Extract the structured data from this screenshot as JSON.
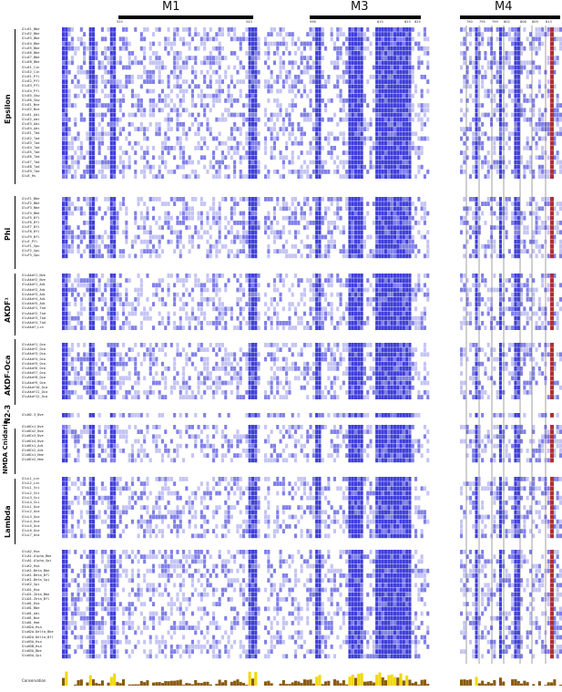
{
  "regions": {
    "m1": "M1",
    "m3": "M3",
    "m4": "M4"
  },
  "positions": {
    "m1": [
      "525",
      "543"
    ],
    "m3": [
      "596",
      "615",
      "623",
      "625"
    ],
    "m4": [
      "790",
      "795",
      "799",
      "802",
      "808",
      "809",
      "813"
    ]
  },
  "groups": [
    {
      "label": "Epsilon"
    },
    {
      "label": "Phi"
    },
    {
      "label": "AKDF¹"
    },
    {
      "label": "AKDF-Oca"
    },
    {
      "label": "N2-3"
    },
    {
      "label": "NMDA Cnidaria"
    },
    {
      "label": "Lambda"
    }
  ],
  "sequences": {
    "epsilon": [
      "GluE1_Bbe",
      "GluE2_Bbe",
      "GluE3_Bbe",
      "GluE4_Bbe",
      "GluE5_Bbe",
      "GluE6_Bbe",
      "GluE7_Bbe",
      "GluE8_Bbe",
      "GluE1_Cin",
      "GluE2_Cin",
      "GluE1_Pfl",
      "GluE2_Pfl",
      "GluE3_Pfl",
      "GluE4_Pfl",
      "GluE5_Skw",
      "GluE6_Skw",
      "GluE1_Nve",
      "GluE2_Nve",
      "GluE1_Adi",
      "GluE2_Adi",
      "GluE3_Adi",
      "GluE4_Adi",
      "GluE1_Tad",
      "GluE2_Tad",
      "GluE3_Tad",
      "GluE4_Tad",
      "GluE5_Tad",
      "GluE6_Tad",
      "GluE7_Tad",
      "GluE8_Tad",
      "GluE9_Tad",
      "GluE_Hs"
    ],
    "phi": [
      "GluF1_Bbe",
      "GluF2_Bbe",
      "GluF3_Bbe",
      "GluF4_Bbe",
      "GluF5_Bfl",
      "GluF6_Bfl",
      "GluF7_Bfl",
      "GluF8_Bfl",
      "GluF9_Bfl",
      "GluF_Pfl",
      "GluF1_Spu",
      "GluF2_Spu",
      "GluF3_Spu"
    ],
    "akdf": [
      "GluAkdf1_Nve",
      "GluAkdf2_Nve",
      "GluAkdf1_Adi",
      "GluAkdf2_Adi",
      "GluAkdf3_Adi",
      "GluAkdf4_Adi",
      "GluAkdf5_Adi",
      "GluAkdf1_Tad",
      "GluAkdf2_Tad",
      "GluAkdf3_Tad",
      "GluAkdf4_Tad",
      "GluAkdf_Lcn"
    ],
    "akdfoca": [
      "GluAkdf1_Oca",
      "GluAkdf2_Oca",
      "GluAkdf3_Oca",
      "GluAkdf4_Oca",
      "GluAkdf5_Oca",
      "GluAkdf6_Oca",
      "GluAkdf7_Oca",
      "GluAkdf8_Oca",
      "GluAkdf9_Oca",
      "GluAkdf10_Oca",
      "GluAkdf11_Oca",
      "GluAkdf12_Oca"
    ],
    "n23": [
      "GluN2-3_Nve"
    ],
    "nmda": [
      "GluNCn1_Nve",
      "GluNCn2_Nve",
      "GluNCn3_Nve",
      "GluNCn4_Nve",
      "GluNCn1_Adi",
      "GluNCn2_Adi",
      "GluNCn1_Hme",
      "GluNCn2_Hme"
    ],
    "lambda": [
      "GluL1_Lcn",
      "GluL2_Lcn",
      "GluL1_Sci",
      "GluL2_Sci",
      "GluL3_Sci",
      "GluL4_Sci",
      "GluL1_Oca",
      "GluL2_Oca",
      "GluL3_Oca",
      "GluL4_Oca",
      "GluL5_Oca",
      "GluL6_Oca",
      "GluL7_Oca"
    ],
    "vertebrate": [
      "GluA2_Hsa",
      "GluA1-Alpha_Bbe",
      "GluA1-Alpha_Spi",
      "GluK2_Hsa",
      "GluK1-Beta_Bbe",
      "GluK1-Beta_Bfl",
      "GluK1-Beta_Spi",
      "GluK2_Spi",
      "GluD1_Hsa",
      "GluD1-Zeta_Bbe",
      "GluD1-Zeta_Bfl",
      "GluN1_Hsa",
      "GluN1_Bbe",
      "GluN1_Adi",
      "GluN1_Nve",
      "GluN1_Hme",
      "GluN2A_Hsa",
      "GluN2A-Delta_Bbe",
      "GluN2A-Delta_Bfl",
      "GluN3A_Hsa",
      "GluN3B_Hsa",
      "GluN3A_Bbe",
      "GluN3A_Spi"
    ]
  },
  "conservation_label": "Conservation",
  "colors": {
    "strong_blue": "#3f3fd8",
    "mid_blue": "#8080e8",
    "light_blue": "#c4c4f4",
    "red_col": "#b03030",
    "cyan_mark": "#3fc0c0",
    "cons_yellow": "#f2d80a",
    "cons_brown": "#8a5a10"
  }
}
